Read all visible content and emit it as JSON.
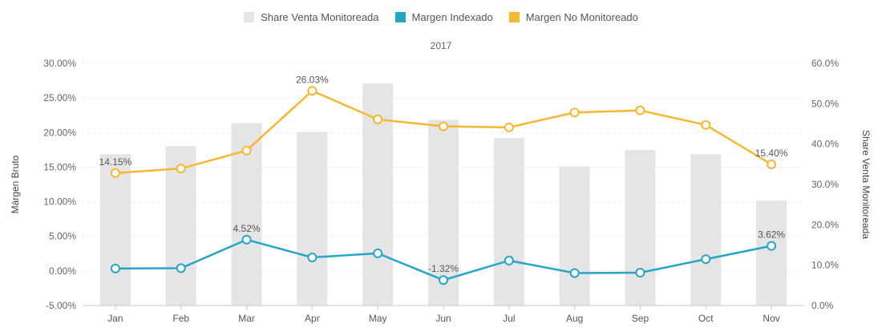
{
  "chart_data": {
    "type": "bar+line",
    "subtitle": "2017",
    "categories": [
      "Jan",
      "Feb",
      "Mar",
      "Apr",
      "May",
      "Jun",
      "Jul",
      "Aug",
      "Sep",
      "Oct",
      "Nov"
    ],
    "bar_series": {
      "name": "Share Venta Monitoreada",
      "axis": "right",
      "color": "#e5e5e5",
      "values": [
        37.5,
        39.5,
        45.2,
        43.0,
        55.0,
        46.0,
        41.5,
        34.5,
        38.5,
        37.5,
        26.0
      ]
    },
    "line_series": [
      {
        "name": "Margen Indexado",
        "axis": "left",
        "color": "#25a6c6",
        "values": [
          0.35,
          0.4,
          4.52,
          1.95,
          2.55,
          -1.32,
          1.5,
          -0.3,
          -0.25,
          1.7,
          3.62
        ],
        "data_labels": [
          null,
          null,
          "4.52%",
          null,
          null,
          "-1.32%",
          null,
          null,
          null,
          null,
          "3.62%"
        ]
      },
      {
        "name": "Margen No Monitoreado",
        "axis": "left",
        "color": "#f7b731",
        "values": [
          14.15,
          14.8,
          17.4,
          26.03,
          21.9,
          20.9,
          20.75,
          22.9,
          23.2,
          21.1,
          15.4
        ],
        "data_labels": [
          "14.15%",
          null,
          null,
          "26.03%",
          null,
          null,
          null,
          null,
          null,
          null,
          "15.40%"
        ]
      }
    ],
    "legend": [
      {
        "name": "Share Venta Monitoreada",
        "color": "#e5e5e5"
      },
      {
        "name": "Margen Indexado",
        "color": "#25a6c6"
      },
      {
        "name": "Margen No Monitoreado",
        "color": "#f7b731"
      }
    ],
    "legend_position": "top-center",
    "left_axis": {
      "label": "Márgen Bruto",
      "range": [
        -5,
        30
      ],
      "ticks": [
        "-5.00%",
        "0.00%",
        "5.00%",
        "10.00%",
        "15.00%",
        "20.00%",
        "25.00%",
        "30.00%"
      ],
      "tick_values": [
        -5,
        0,
        5,
        10,
        15,
        20,
        25,
        30
      ]
    },
    "right_axis": {
      "label": "Share Venta Monitoreada",
      "range": [
        0,
        60
      ],
      "ticks": [
        "0.0%",
        "10.0%",
        "20.0%",
        "30.0%",
        "40.0%",
        "50.0%",
        "60.0%"
      ],
      "tick_values": [
        0,
        10,
        20,
        30,
        40,
        50,
        60
      ]
    },
    "grid": true
  }
}
